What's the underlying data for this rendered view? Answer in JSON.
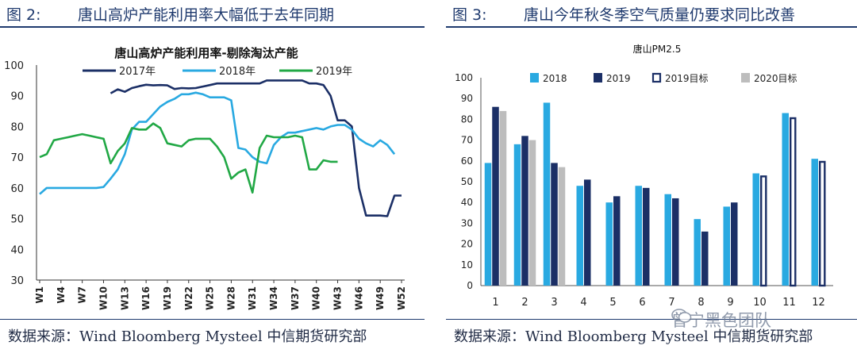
{
  "left_panel": {
    "figure_label": "图 2:",
    "figure_title": "唐山高炉产能利用率大幅低于去年同期",
    "source": "数据来源：Wind Bloomberg Mysteel 中信期货研究部"
  },
  "right_panel": {
    "figure_label": "图 3:",
    "figure_title": "唐山今年秋冬季空气质量仍要求同比改善",
    "source": "数据来源：Wind Bloomberg Mysteel 中信期货研究部"
  },
  "watermark": "曾宁黑色团队",
  "colors": {
    "navy": "#1b2f66",
    "sky": "#29a9e1",
    "green": "#21a845",
    "gray": "#bdbdbd",
    "title_blue": "#1f3a6e"
  },
  "chart_data": [
    {
      "type": "line",
      "title": "唐山高炉产能利用率-剔除淘汰产能",
      "ylim": [
        30,
        100
      ],
      "yticks": [
        30,
        40,
        50,
        60,
        70,
        80,
        90,
        100
      ],
      "x": [
        "W1",
        "W2",
        "W3",
        "W4",
        "W5",
        "W6",
        "W7",
        "W8",
        "W9",
        "W10",
        "W11",
        "W12",
        "W13",
        "W14",
        "W15",
        "W16",
        "W17",
        "W18",
        "W19",
        "W20",
        "W21",
        "W22",
        "W23",
        "W24",
        "W25",
        "W26",
        "W27",
        "W28",
        "W29",
        "W30",
        "W31",
        "W32",
        "W33",
        "W34",
        "W35",
        "W36",
        "W37",
        "W38",
        "W39",
        "W40",
        "W41",
        "W42",
        "W43",
        "W44",
        "W45",
        "W46",
        "W47",
        "W48",
        "W49",
        "W50",
        "W51",
        "W52"
      ],
      "xticks": [
        "W1",
        "W4",
        "W7",
        "W10",
        "W13",
        "W16",
        "W19",
        "W22",
        "W25",
        "W28",
        "W31",
        "W34",
        "W37",
        "W40",
        "W43",
        "W46",
        "W49",
        "W52"
      ],
      "legend_position": "top",
      "series": [
        {
          "name": "2017年",
          "color_key": "navy",
          "values": [
            null,
            null,
            null,
            null,
            null,
            null,
            null,
            null,
            null,
            null,
            90.8,
            92.1,
            91.3,
            92.5,
            93.1,
            93.6,
            93.4,
            93.5,
            93.4,
            92.2,
            92.5,
            92.4,
            92.5,
            93.0,
            93.5,
            94.0,
            94.0,
            94.0,
            94.0,
            94.0,
            94.0,
            94.0,
            95.0,
            95.0,
            95.0,
            95.0,
            95.0,
            95.0,
            94.0,
            94.0,
            93.5,
            90.0,
            82.0,
            82.0,
            80.0,
            60.0,
            51.0,
            51.0,
            51.0,
            50.8,
            57.5,
            57.5
          ]
        },
        {
          "name": "2018年",
          "color_key": "sky",
          "values": [
            58.0,
            60.0,
            60.0,
            60.0,
            60.0,
            60.0,
            60.0,
            60.0,
            60.0,
            60.3,
            63.0,
            66.0,
            71.0,
            79.0,
            81.5,
            81.5,
            84.0,
            86.5,
            88.0,
            89.0,
            90.5,
            90.5,
            91.0,
            90.5,
            89.5,
            89.5,
            89.5,
            88.5,
            73.0,
            72.5,
            70.0,
            68.5,
            68.0,
            74.0,
            76.5,
            78.0,
            78.0,
            78.5,
            79.0,
            79.5,
            79.0,
            80.0,
            80.5,
            80.5,
            79.0,
            76.0,
            74.5,
            73.5,
            75.5,
            74.0,
            71.0,
            null
          ]
        },
        {
          "name": "2019年",
          "color_key": "green",
          "values": [
            70.0,
            71.0,
            75.5,
            76.0,
            76.5,
            77.0,
            77.5,
            77.0,
            76.5,
            76.0,
            68.0,
            72.0,
            74.5,
            79.5,
            79.0,
            79.0,
            81.0,
            79.5,
            74.5,
            74.0,
            73.5,
            75.5,
            76.0,
            76.0,
            76.0,
            73.5,
            70.0,
            63.0,
            65.0,
            66.0,
            58.5,
            73.0,
            77.0,
            76.5,
            76.5,
            76.5,
            77.0,
            76.5,
            66.0,
            66.0,
            69.0,
            68.5,
            68.5,
            null,
            null,
            null,
            null,
            null,
            null,
            null,
            null,
            null
          ]
        }
      ]
    },
    {
      "type": "bar",
      "title": "唐山PM2.5",
      "categories": [
        "1",
        "2",
        "3",
        "4",
        "5",
        "6",
        "7",
        "8",
        "9",
        "10",
        "11",
        "12"
      ],
      "ylim": [
        0,
        100
      ],
      "yticks": [
        0,
        10,
        20,
        30,
        40,
        50,
        60,
        70,
        80,
        90,
        100
      ],
      "legend_position": "top",
      "series": [
        {
          "name": "2018",
          "color_key": "sky",
          "style": "solid",
          "values": [
            59,
            68,
            88,
            48,
            40,
            48,
            44,
            32,
            38,
            54,
            83,
            61
          ]
        },
        {
          "name": "2019",
          "color_key": "navy",
          "style": "solid",
          "values": [
            86,
            72,
            59,
            51,
            43,
            47,
            42,
            26,
            40,
            null,
            null,
            null
          ]
        },
        {
          "name": "2019目标",
          "color_key": "navy",
          "style": "outline",
          "values": [
            null,
            null,
            null,
            null,
            null,
            null,
            null,
            null,
            null,
            53,
            81,
            60
          ]
        },
        {
          "name": "2020目标",
          "color_key": "gray",
          "style": "solid",
          "values": [
            84,
            70,
            57,
            null,
            null,
            null,
            null,
            null,
            null,
            null,
            null,
            null
          ]
        }
      ]
    }
  ]
}
